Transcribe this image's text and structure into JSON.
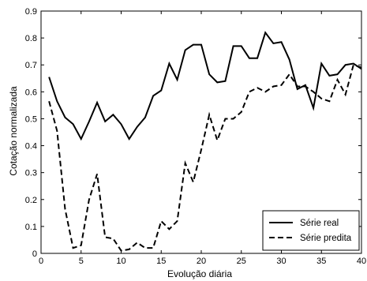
{
  "chart_data": {
    "type": "line",
    "xlabel": "Evolução diária",
    "ylabel": "Cotação normalizada",
    "xlim": [
      0,
      40
    ],
    "ylim": [
      0,
      0.9
    ],
    "xticks": [
      0,
      5,
      10,
      15,
      20,
      25,
      30,
      35,
      40
    ],
    "yticks": [
      0,
      0.1,
      0.2,
      0.3,
      0.4,
      0.5,
      0.6,
      0.7,
      0.8,
      0.9
    ],
    "grid": false,
    "legend_position": "bottom-right",
    "series": [
      {
        "name": "Série real",
        "style": "solid",
        "color": "#000000",
        "x": [
          1,
          2,
          3,
          4,
          5,
          6,
          7,
          8,
          9,
          10,
          11,
          12,
          13,
          14,
          15,
          16,
          17,
          18,
          19,
          20,
          21,
          22,
          23,
          24,
          25,
          26,
          27,
          28,
          29,
          30,
          31,
          32,
          33,
          34,
          35,
          36,
          37,
          38,
          39,
          40
        ],
        "y": [
          0.655,
          0.565,
          0.505,
          0.48,
          0.425,
          0.49,
          0.56,
          0.49,
          0.515,
          0.48,
          0.425,
          0.47,
          0.505,
          0.585,
          0.605,
          0.705,
          0.645,
          0.755,
          0.775,
          0.775,
          0.665,
          0.635,
          0.64,
          0.77,
          0.77,
          0.725,
          0.725,
          0.82,
          0.78,
          0.785,
          0.72,
          0.61,
          0.625,
          0.54,
          0.705,
          0.66,
          0.665,
          0.7,
          0.705,
          0.685
        ]
      },
      {
        "name": "Série predita",
        "style": "dashed",
        "color": "#000000",
        "x": [
          1,
          2,
          3,
          4,
          5,
          6,
          7,
          8,
          9,
          10,
          11,
          12,
          13,
          14,
          15,
          16,
          17,
          18,
          19,
          20,
          21,
          22,
          23,
          24,
          25,
          26,
          27,
          28,
          29,
          30,
          31,
          32,
          33,
          34,
          35,
          36,
          37,
          38,
          39,
          40
        ],
        "y": [
          0.565,
          0.455,
          0.165,
          0.02,
          0.03,
          0.2,
          0.295,
          0.06,
          0.055,
          0.01,
          0.015,
          0.04,
          0.02,
          0.02,
          0.12,
          0.09,
          0.12,
          0.335,
          0.265,
          0.385,
          0.515,
          0.42,
          0.5,
          0.5,
          0.525,
          0.6,
          0.615,
          0.6,
          0.62,
          0.625,
          0.665,
          0.62,
          0.62,
          0.6,
          0.575,
          0.565,
          0.645,
          0.59,
          0.7,
          0.69
        ]
      }
    ]
  }
}
